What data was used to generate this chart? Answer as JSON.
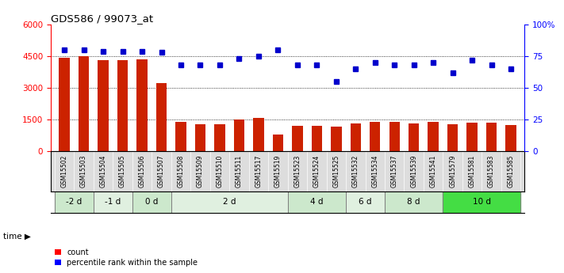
{
  "title": "GDS586 / 99073_at",
  "categories": [
    "GSM15502",
    "GSM15503",
    "GSM15504",
    "GSM15505",
    "GSM15506",
    "GSM15507",
    "GSM15508",
    "GSM15509",
    "GSM15510",
    "GSM15511",
    "GSM15517",
    "GSM15519",
    "GSM15523",
    "GSM15524",
    "GSM15525",
    "GSM15532",
    "GSM15534",
    "GSM15537",
    "GSM15539",
    "GSM15541",
    "GSM15579",
    "GSM15581",
    "GSM15583",
    "GSM15585"
  ],
  "counts": [
    4430,
    4490,
    4330,
    4320,
    4340,
    3220,
    1390,
    1290,
    1270,
    1530,
    1590,
    800,
    1230,
    1230,
    1160,
    1330,
    1390,
    1400,
    1330,
    1400,
    1280,
    1350,
    1350,
    1240
  ],
  "percentiles": [
    80,
    80,
    79,
    79,
    79,
    78,
    68,
    68,
    68,
    73,
    75,
    80,
    68,
    68,
    55,
    65,
    70,
    68,
    68,
    70,
    62,
    72,
    68,
    65
  ],
  "time_group_map": [
    0,
    0,
    1,
    1,
    2,
    2,
    3,
    3,
    3,
    3,
    3,
    3,
    4,
    4,
    4,
    5,
    5,
    6,
    6,
    6,
    7,
    7,
    7,
    7
  ],
  "time_groups": [
    {
      "label": "-2 d",
      "count": 2
    },
    {
      "label": "-1 d",
      "count": 2
    },
    {
      "label": "0 d",
      "count": 2
    },
    {
      "label": "2 d",
      "count": 6
    },
    {
      "label": "4 d",
      "count": 3
    },
    {
      "label": "6 d",
      "count": 2
    },
    {
      "label": "8 d",
      "count": 3
    },
    {
      "label": "10 d",
      "count": 4
    }
  ],
  "group_colors": [
    "#cce8cc",
    "#e0f0e0",
    "#cce8cc",
    "#e0f0e0",
    "#cce8cc",
    "#e0f0e0",
    "#cce8cc",
    "#44dd44"
  ],
  "bar_color": "#cc2200",
  "dot_color": "#0000cc",
  "ylim_left": [
    0,
    6000
  ],
  "ylim_right": [
    0,
    100
  ],
  "yticks_left": [
    0,
    1500,
    3000,
    4500,
    6000
  ],
  "yticks_right": [
    0,
    25,
    50,
    75,
    100
  ],
  "bg_color": "#ffffff",
  "label_bg": "#dddddd"
}
